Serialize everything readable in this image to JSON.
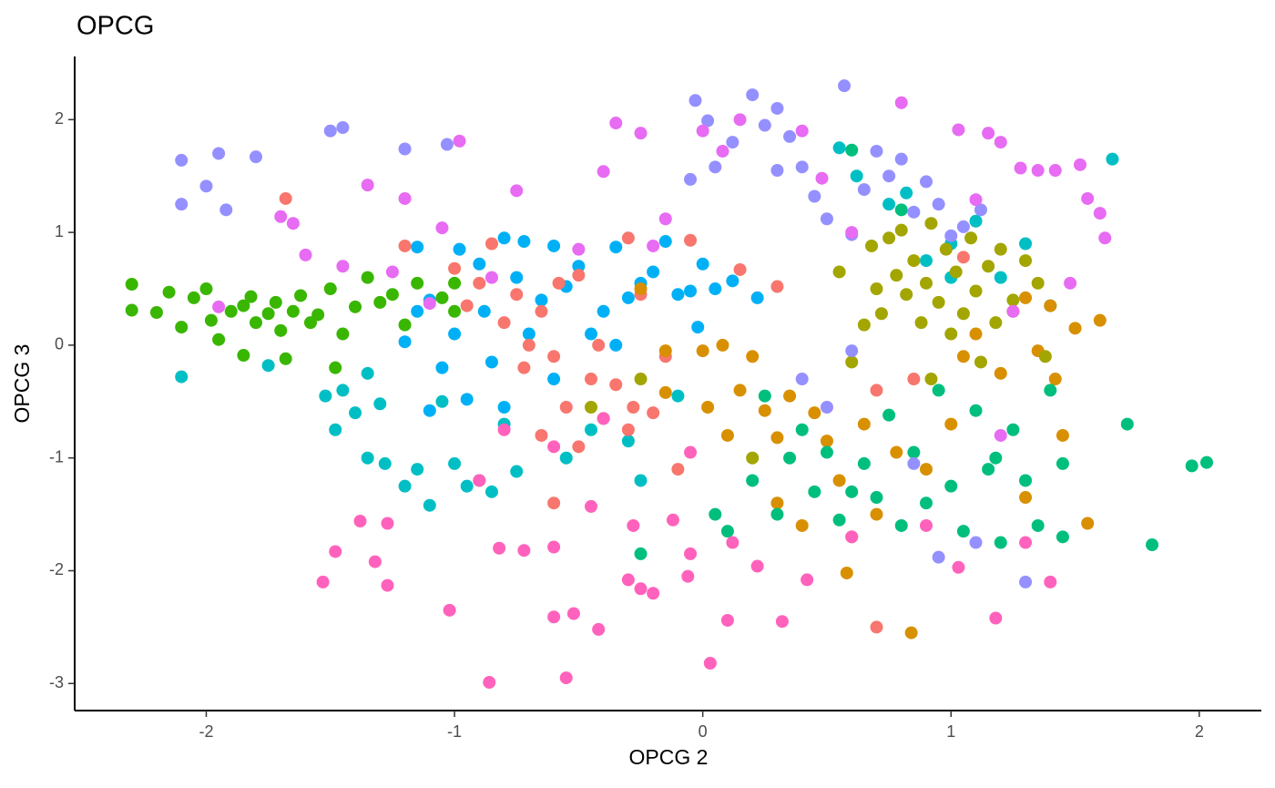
{
  "chart_data": {
    "type": "scatter",
    "title": "OPCG",
    "x_label": "OPCG 2",
    "y_label": "OPCG 3",
    "xlim": [
      -2.53,
      2.25
    ],
    "ylim": [
      -3.24,
      2.56
    ],
    "xticks": [
      -2,
      -1,
      0,
      1,
      2
    ],
    "yticks": [
      -3,
      -2,
      -1,
      0,
      1,
      2
    ],
    "series": [
      {
        "color": "#39B600",
        "x": [
          -2.3,
          -2.3,
          -2.2,
          -2.15,
          -2.1,
          -2.05,
          -2.0,
          -1.98,
          -1.95,
          -1.9,
          -1.85,
          -1.82,
          -1.8,
          -1.75,
          -1.72,
          -1.7,
          -1.65,
          -1.62,
          -1.58,
          -1.55,
          -1.5,
          -1.45,
          -1.4,
          -1.35,
          -1.3,
          -1.25,
          -1.2,
          -1.15,
          -1.05,
          -1.0,
          -1.85,
          -1.68,
          -1.48,
          -1.0
        ],
        "y": [
          0.54,
          0.31,
          0.29,
          0.47,
          0.16,
          0.42,
          0.5,
          0.22,
          0.05,
          0.3,
          0.35,
          0.43,
          0.2,
          0.28,
          0.38,
          0.13,
          0.3,
          0.44,
          0.2,
          0.27,
          0.5,
          0.1,
          0.34,
          0.6,
          0.38,
          0.45,
          0.18,
          0.55,
          0.42,
          0.3,
          -0.09,
          -0.12,
          -0.2,
          0.55
        ]
      },
      {
        "color": "#00BFC4",
        "x": [
          -2.1,
          -1.52,
          -1.48,
          -1.45,
          -1.4,
          -1.35,
          -1.3,
          -1.28,
          -1.2,
          -1.15,
          -1.1,
          -1.05,
          -1.0,
          -0.95,
          -0.9,
          -0.85,
          -0.8,
          -0.75,
          -0.55,
          -0.45,
          -0.3,
          -0.25,
          -0.1,
          0.62,
          0.75,
          0.82,
          0.9,
          1.0,
          1.1,
          1.2,
          1.3,
          1.4,
          1.65,
          0.55,
          1.0,
          -1.35,
          -1.75
        ],
        "y": [
          -0.28,
          -0.45,
          -0.75,
          -0.4,
          -0.6,
          -1.0,
          -0.52,
          -1.05,
          -1.25,
          -1.1,
          -1.42,
          -0.5,
          -1.05,
          -1.25,
          -1.2,
          -1.3,
          -0.7,
          -1.12,
          -1.0,
          -0.75,
          -0.85,
          -1.2,
          -0.45,
          1.5,
          1.25,
          1.35,
          0.75,
          0.6,
          1.1,
          0.6,
          0.9,
          0.35,
          1.65,
          1.75,
          0.9,
          -0.25,
          -0.18
        ]
      },
      {
        "color": "#00B0F6",
        "x": [
          -1.2,
          -1.15,
          -1.1,
          -1.05,
          -1.0,
          -0.98,
          -0.95,
          -0.9,
          -0.88,
          -0.85,
          -0.8,
          -0.75,
          -0.72,
          -0.7,
          -0.65,
          -0.6,
          -0.55,
          -0.5,
          -0.45,
          -0.4,
          -0.35,
          -0.3,
          -0.25,
          -0.2,
          -0.15,
          -0.1,
          -0.05,
          0.0,
          0.05,
          0.12,
          0.22,
          -1.1,
          -0.8,
          -0.6,
          -0.35,
          -0.02,
          -1.15
        ],
        "y": [
          0.03,
          0.87,
          0.4,
          -0.2,
          0.1,
          0.85,
          -0.48,
          0.72,
          0.3,
          -0.15,
          0.95,
          0.6,
          0.92,
          0.1,
          0.4,
          0.88,
          0.52,
          0.7,
          0.1,
          0.3,
          0.87,
          0.42,
          0.55,
          0.65,
          0.92,
          0.45,
          0.48,
          0.72,
          0.5,
          0.57,
          0.42,
          -0.58,
          -0.55,
          -0.3,
          0.0,
          0.16,
          0.3
        ]
      },
      {
        "color": "#F8766D",
        "x": [
          -1.68,
          -1.2,
          -1.0,
          -0.95,
          -0.9,
          -0.85,
          -0.8,
          -0.75,
          -0.72,
          -0.7,
          -0.65,
          -0.6,
          -0.58,
          -0.55,
          -0.5,
          -0.45,
          -0.42,
          -0.4,
          -0.35,
          -0.3,
          -0.28,
          -0.25,
          -0.2,
          -0.15,
          -0.1,
          -0.05,
          0.15,
          0.3,
          -0.6,
          0.7,
          0.7,
          0.85,
          -0.3,
          -0.65,
          -0.5,
          1.05
        ],
        "y": [
          1.3,
          0.88,
          0.68,
          0.35,
          0.55,
          0.9,
          0.2,
          0.45,
          -0.2,
          0.0,
          0.3,
          -0.1,
          0.55,
          -0.55,
          0.62,
          -0.3,
          0.0,
          -0.65,
          -0.35,
          0.95,
          -0.55,
          0.45,
          -0.6,
          -0.1,
          -1.1,
          0.93,
          0.67,
          0.52,
          -1.4,
          -2.5,
          -0.4,
          -0.3,
          -0.75,
          -0.8,
          -0.9,
          0.78
        ]
      },
      {
        "color": "#D89000",
        "x": [
          -0.25,
          -0.15,
          0.0,
          0.02,
          0.08,
          0.1,
          0.15,
          0.2,
          0.25,
          0.3,
          0.35,
          0.4,
          0.45,
          0.5,
          0.55,
          0.6,
          0.65,
          0.7,
          0.58,
          0.78,
          0.84,
          0.9,
          1.0,
          1.05,
          1.1,
          1.2,
          1.25,
          1.3,
          1.35,
          1.4,
          1.45,
          1.5,
          1.55,
          1.6,
          1.42,
          1.3,
          0.3,
          -0.15
        ],
        "y": [
          0.5,
          -0.42,
          -0.05,
          -0.55,
          0.0,
          -0.8,
          -0.4,
          -0.1,
          -0.58,
          -0.82,
          -0.45,
          -1.6,
          -0.6,
          -0.85,
          -1.2,
          -1.7,
          -0.7,
          -1.5,
          -2.02,
          -0.95,
          -2.55,
          -1.1,
          -0.7,
          -0.1,
          0.1,
          -0.25,
          0.3,
          -1.35,
          -0.05,
          0.35,
          -0.8,
          0.15,
          -1.58,
          0.22,
          -0.3,
          0.42,
          -1.4,
          -0.05
        ]
      },
      {
        "color": "#A3A500",
        "x": [
          0.55,
          0.65,
          0.68,
          0.7,
          0.72,
          0.75,
          0.78,
          0.8,
          0.82,
          0.85,
          0.88,
          0.9,
          0.92,
          0.95,
          0.98,
          1.0,
          1.02,
          1.05,
          1.08,
          1.1,
          1.12,
          1.15,
          1.18,
          1.2,
          1.25,
          1.3,
          1.35,
          1.38,
          0.6,
          0.92,
          0.2,
          -0.25,
          -0.45
        ],
        "y": [
          0.65,
          0.18,
          0.88,
          0.5,
          0.28,
          0.95,
          0.62,
          1.02,
          0.45,
          0.75,
          0.2,
          0.55,
          -0.3,
          0.38,
          0.85,
          0.1,
          0.65,
          0.28,
          0.95,
          0.48,
          -0.15,
          0.7,
          0.2,
          0.85,
          0.4,
          0.75,
          0.55,
          -0.1,
          -0.15,
          1.08,
          -1.0,
          -0.3,
          -0.55
        ]
      },
      {
        "color": "#00BF7D",
        "x": [
          -0.25,
          0.05,
          0.2,
          0.25,
          0.3,
          0.35,
          0.4,
          0.45,
          0.5,
          0.55,
          0.6,
          0.65,
          0.7,
          0.75,
          0.8,
          0.85,
          0.9,
          0.95,
          1.0,
          1.05,
          1.1,
          1.15,
          1.2,
          1.25,
          1.3,
          1.35,
          1.4,
          1.45,
          1.71,
          1.81,
          1.97,
          2.03,
          0.6,
          0.1,
          1.45,
          1.18,
          0.8
        ],
        "y": [
          -1.85,
          -1.5,
          -1.2,
          -0.45,
          -1.5,
          -1.0,
          -0.75,
          -1.3,
          -0.95,
          -1.55,
          -1.3,
          -1.05,
          -1.35,
          -0.62,
          -1.6,
          -0.95,
          -1.4,
          -0.4,
          -1.25,
          -1.65,
          -0.58,
          -1.1,
          -1.75,
          -0.75,
          -1.2,
          -1.6,
          -0.4,
          -1.05,
          -0.7,
          -1.77,
          -1.07,
          -1.04,
          1.73,
          -1.65,
          -1.7,
          -1.0,
          1.2
        ]
      },
      {
        "color": "#9590FF",
        "x": [
          -2.1,
          -2.1,
          -2.0,
          -1.95,
          -1.92,
          -1.8,
          -1.5,
          -1.45,
          -1.2,
          -1.03,
          -0.05,
          -0.03,
          0.02,
          0.05,
          0.12,
          0.2,
          0.25,
          0.3,
          0.35,
          0.4,
          0.45,
          0.5,
          0.57,
          0.6,
          0.65,
          0.7,
          0.75,
          0.8,
          0.85,
          0.9,
          0.95,
          1.0,
          1.05,
          1.12,
          0.4,
          0.5,
          0.6,
          0.85,
          0.95,
          1.1,
          1.3,
          0.3
        ],
        "y": [
          1.64,
          1.25,
          1.41,
          1.7,
          1.2,
          1.67,
          1.9,
          1.93,
          1.74,
          1.78,
          1.47,
          2.17,
          1.99,
          1.58,
          1.8,
          2.22,
          1.95,
          2.1,
          1.85,
          1.58,
          1.32,
          1.12,
          2.3,
          0.98,
          1.38,
          1.72,
          1.5,
          1.65,
          1.18,
          1.45,
          1.25,
          0.97,
          1.05,
          1.2,
          -0.3,
          -0.55,
          -0.05,
          -1.05,
          -1.88,
          -1.75,
          -2.1,
          1.55
        ]
      },
      {
        "color": "#E76BF3",
        "x": [
          -1.95,
          -1.7,
          -1.65,
          -1.6,
          -1.45,
          -1.35,
          -1.25,
          -1.2,
          -1.1,
          -1.05,
          -0.85,
          -0.75,
          -0.5,
          -0.4,
          -0.35,
          -0.25,
          -0.2,
          -0.15,
          0.08,
          0.15,
          0.48,
          0.6,
          0.8,
          1.03,
          1.1,
          1.15,
          1.2,
          1.28,
          1.35,
          1.42,
          1.48,
          1.52,
          1.55,
          1.6,
          1.62,
          1.2,
          1.25,
          -0.98,
          0.0,
          0.4
        ],
        "y": [
          0.34,
          1.14,
          1.08,
          0.8,
          0.7,
          1.42,
          0.65,
          1.3,
          0.37,
          1.04,
          0.6,
          1.37,
          0.85,
          1.54,
          1.97,
          1.88,
          0.88,
          1.12,
          1.72,
          2.0,
          1.48,
          1.0,
          2.15,
          1.91,
          1.29,
          1.88,
          1.8,
          1.57,
          1.55,
          1.55,
          0.55,
          1.6,
          1.3,
          1.17,
          0.95,
          -0.8,
          0.3,
          1.81,
          1.9,
          1.9
        ]
      },
      {
        "color": "#FF62BC",
        "x": [
          -1.53,
          -1.48,
          -1.38,
          -1.32,
          -1.27,
          -1.27,
          -1.02,
          -0.86,
          -0.82,
          -0.72,
          -0.6,
          -0.6,
          -0.55,
          -0.52,
          -0.45,
          -0.42,
          -0.3,
          -0.28,
          -0.25,
          -0.2,
          -0.12,
          -0.06,
          0.03,
          0.1,
          0.12,
          0.22,
          0.32,
          0.42,
          0.6,
          0.9,
          1.03,
          1.18,
          1.3,
          1.4,
          -0.8,
          -0.4,
          -0.9,
          -0.6,
          -0.05,
          -0.05
        ],
        "y": [
          -2.1,
          -1.83,
          -1.56,
          -1.92,
          -1.58,
          -2.13,
          -2.35,
          -2.99,
          -1.8,
          -1.82,
          -1.79,
          -2.41,
          -2.95,
          -2.38,
          -1.43,
          -2.52,
          -2.08,
          -1.6,
          -2.16,
          -2.2,
          -1.55,
          -2.05,
          -2.82,
          -2.44,
          -1.75,
          -1.96,
          -2.45,
          -2.08,
          -1.7,
          -1.6,
          -1.97,
          -2.42,
          -1.75,
          -2.1,
          -0.75,
          -0.65,
          -1.2,
          -0.9,
          -0.95,
          -1.85
        ]
      }
    ]
  }
}
